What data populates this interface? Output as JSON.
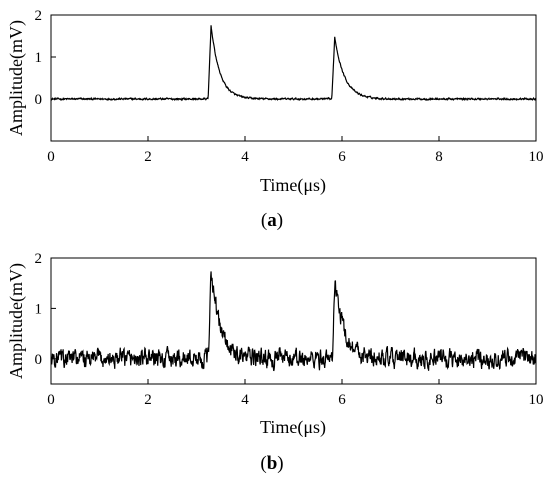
{
  "chart_data": [
    {
      "type": "line",
      "panel_label": "a",
      "xlabel": "Time(μs)",
      "ylabel": "Amplitude(mV)",
      "xlim": [
        0,
        10
      ],
      "ylim": [
        -1,
        2
      ],
      "xticks": [
        "0",
        "2",
        "4",
        "6",
        "8",
        "10"
      ],
      "yticks": [
        "0",
        "1",
        "2"
      ],
      "noise_amplitude": 0.03,
      "pulses": [
        {
          "time": 3.3,
          "peak": 1.75,
          "rise": 0.06,
          "decay": 0.18
        },
        {
          "time": 5.85,
          "peak": 1.48,
          "rise": 0.06,
          "decay": 0.2
        }
      ],
      "grid": false,
      "line_color": "#000000"
    },
    {
      "type": "line",
      "panel_label": "b",
      "xlabel": "Time(μs)",
      "ylabel": "Amplitude(mV)",
      "xlim": [
        0,
        10
      ],
      "ylim": [
        -0.5,
        2
      ],
      "xticks": [
        "0",
        "2",
        "4",
        "6",
        "8",
        "10"
      ],
      "yticks": [
        "0",
        "1",
        "2"
      ],
      "noise_amplitude": 0.2,
      "pulses": [
        {
          "time": 3.3,
          "peak": 1.85,
          "rise": 0.05,
          "decay": 0.18
        },
        {
          "time": 5.85,
          "peak": 1.55,
          "rise": 0.05,
          "decay": 0.2
        }
      ],
      "grid": false,
      "line_color": "#000000"
    }
  ],
  "captions": [
    {
      "open": "(",
      "letter": "a",
      "close": ")"
    },
    {
      "open": "(",
      "letter": "b",
      "close": ")"
    }
  ]
}
